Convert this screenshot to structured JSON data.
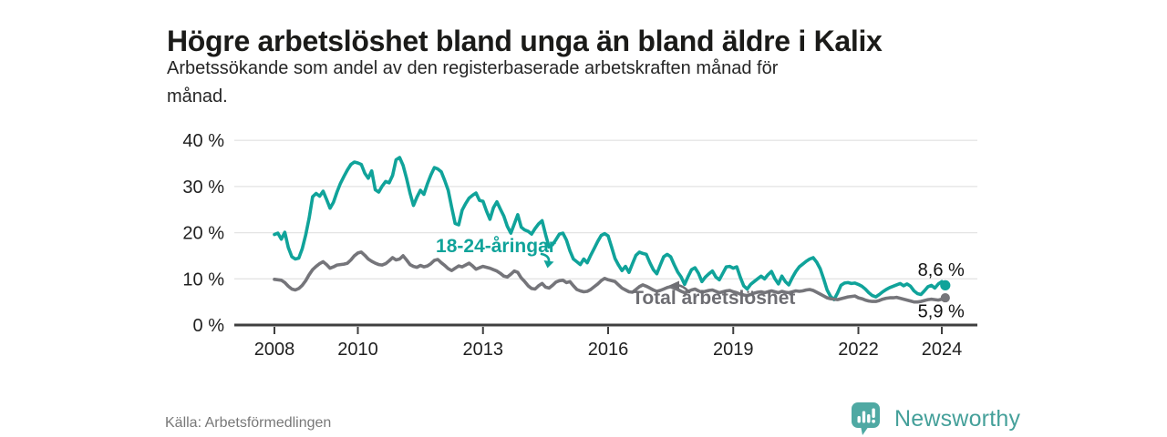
{
  "header": {
    "title": "Högre arbetslöshet bland unga än bland äldre i Kalix",
    "subtitle_line1": "Arbetssökande som andel av den registerbaserade arbetskraften månad för",
    "subtitle_line2": "månad."
  },
  "footer": {
    "source": "Källa: Arbetsförmedlingen",
    "brand": "Newsworthy"
  },
  "colors": {
    "young_line": "#10a39a",
    "total_line": "#75757a",
    "total_label": "#6e6e73",
    "grid": "#e4e4e4",
    "axis": "#3f3f3f",
    "tick_text": "#1f1f1f",
    "end_label_text": "#111111",
    "brand_teal": "#4ba5a0"
  },
  "chart_data": {
    "type": "line",
    "title": "Högre arbetslöshet bland unga än bland äldre i Kalix",
    "xlabel": "",
    "ylabel": "",
    "grid": "horizontal",
    "xlim": [
      2007.05,
      2024.8
    ],
    "ylim": [
      0,
      40
    ],
    "x_ticks": [
      2008,
      2010,
      2013,
      2016,
      2019,
      2022,
      2024
    ],
    "x_tick_labels": [
      "2008",
      "2010",
      "2013",
      "2016",
      "2019",
      "2022",
      "2024"
    ],
    "y_ticks": [
      0,
      10,
      20,
      30,
      40
    ],
    "y_tick_labels": [
      "0 %",
      "10 %",
      "20 %",
      "30 %",
      "40 %"
    ],
    "series": [
      {
        "id": "young",
        "name": "18-24-åringar",
        "color": "#10a39a",
        "end_value": 8.6,
        "end_label": "8,6 %",
        "label_anchor": {
          "x": 2011.87,
          "y": 15.8
        },
        "start_year": 2008,
        "step_months": 1,
        "values": [
          19.6,
          19.9,
          18.6,
          20.1,
          16.8,
          14.8,
          14.3,
          14.5,
          16.5,
          19.5,
          23.2,
          27.8,
          28.5,
          27.9,
          29.0,
          27.2,
          25.3,
          26.6,
          28.8,
          30.7,
          32.2,
          33.6,
          34.8,
          35.3,
          35.1,
          34.8,
          32.9,
          31.8,
          33.4,
          29.3,
          28.8,
          30.1,
          31.1,
          30.8,
          32.4,
          35.8,
          36.3,
          34.6,
          31.8,
          28.6,
          25.9,
          27.7,
          29.2,
          28.3,
          30.6,
          32.5,
          34.1,
          33.8,
          33.2,
          31.3,
          29.2,
          25.5,
          22.0,
          21.7,
          24.9,
          26.3,
          27.5,
          28.1,
          28.6,
          27.0,
          26.8,
          24.7,
          22.9,
          25.4,
          26.7,
          25.1,
          23.6,
          21.4,
          19.9,
          21.9,
          23.9,
          21.2,
          20.6,
          20.3,
          19.7,
          20.9,
          21.9,
          22.6,
          19.6,
          16.9,
          17.4,
          18.5,
          19.7,
          19.9,
          18.4,
          16.1,
          14.3,
          13.7,
          13.1,
          14.3,
          13.5,
          15.1,
          16.6,
          18.1,
          19.4,
          19.8,
          19.3,
          16.9,
          14.4,
          13.0,
          11.8,
          12.7,
          11.4,
          13.3,
          15.1,
          15.8,
          15.5,
          15.3,
          13.5,
          12.0,
          11.1,
          13.0,
          14.8,
          15.3,
          14.8,
          13.1,
          11.5,
          10.4,
          8.8,
          10.5,
          12.0,
          12.4,
          11.2,
          9.4,
          10.4,
          11.1,
          11.7,
          10.4,
          9.8,
          11.2,
          12.6,
          12.7,
          12.3,
          12.6,
          10.4,
          8.5,
          7.8,
          8.8,
          9.4,
          10.0,
          10.6,
          10.0,
          10.9,
          11.6,
          10.0,
          8.9,
          10.6,
          9.4,
          8.7,
          10.3,
          11.6,
          12.6,
          13.2,
          13.8,
          14.3,
          14.6,
          13.6,
          12.2,
          10.0,
          7.6,
          6.2,
          5.5,
          6.9,
          8.6,
          9.1,
          9.2,
          9.0,
          9.1,
          8.8,
          8.4,
          7.8,
          7.0,
          6.4,
          6.1,
          6.6,
          7.2,
          7.7,
          8.1,
          8.4,
          8.7,
          9.0,
          8.5,
          8.9,
          8.4,
          7.4,
          6.8,
          6.6,
          7.4,
          8.3,
          8.6,
          8.0,
          8.9,
          9.4,
          8.6
        ]
      },
      {
        "id": "total",
        "name": "Total arbetslöshet",
        "color": "#75757a",
        "end_value": 5.9,
        "end_label": "5,9 %",
        "label_anchor": {
          "x": 2016.57,
          "y": 4.5
        },
        "start_year": 2008,
        "step_months": 1,
        "values": [
          9.9,
          9.8,
          9.7,
          9.2,
          8.4,
          7.8,
          7.6,
          7.9,
          8.6,
          9.6,
          10.9,
          12.0,
          12.7,
          13.3,
          13.7,
          13.1,
          12.3,
          12.6,
          13.0,
          13.1,
          13.2,
          13.4,
          14.1,
          15.0,
          15.6,
          15.8,
          15.1,
          14.3,
          13.8,
          13.4,
          13.1,
          13.0,
          13.3,
          13.9,
          14.6,
          14.1,
          14.3,
          15.0,
          14.1,
          13.1,
          12.7,
          12.5,
          12.9,
          12.6,
          12.8,
          13.3,
          14.0,
          14.2,
          13.5,
          12.9,
          12.2,
          11.8,
          12.3,
          12.8,
          12.6,
          13.0,
          13.4,
          12.8,
          12.1,
          12.4,
          12.7,
          12.5,
          12.3,
          12.0,
          11.7,
          11.2,
          10.6,
          10.4,
          11.0,
          11.7,
          11.4,
          10.2,
          9.4,
          8.5,
          7.9,
          7.8,
          8.5,
          9.0,
          8.2,
          8.0,
          8.6,
          9.3,
          9.6,
          9.7,
          9.2,
          9.4,
          8.5,
          7.7,
          7.4,
          7.2,
          7.3,
          7.7,
          8.3,
          8.9,
          9.6,
          10.1,
          9.8,
          9.6,
          9.4,
          8.7,
          8.0,
          7.6,
          7.2,
          7.1,
          7.7,
          8.3,
          8.7,
          8.4,
          8.0,
          7.6,
          7.3,
          7.5,
          7.8,
          8.1,
          8.3,
          8.0,
          7.7,
          7.3,
          7.0,
          7.3,
          7.6,
          7.8,
          7.4,
          7.1,
          7.3,
          7.5,
          7.6,
          7.3,
          7.0,
          7.2,
          7.4,
          7.5,
          7.2,
          7.0,
          6.7,
          6.5,
          6.4,
          6.6,
          6.9,
          7.1,
          7.2,
          7.0,
          7.2,
          7.4,
          7.2,
          7.0,
          7.3,
          7.1,
          7.0,
          7.2,
          7.4,
          7.3,
          7.4,
          7.6,
          7.7,
          7.5,
          7.1,
          6.7,
          6.3,
          5.9,
          5.7,
          5.6,
          5.5,
          5.7,
          5.9,
          6.1,
          6.2,
          6.3,
          5.9,
          5.7,
          5.4,
          5.2,
          5.1,
          5.1,
          5.3,
          5.6,
          5.8,
          5.9,
          5.9,
          6.0,
          5.8,
          5.6,
          5.4,
          5.2,
          5.0,
          5.0,
          5.1,
          5.3,
          5.5,
          5.6,
          5.5,
          5.4,
          5.6,
          5.9
        ]
      }
    ]
  }
}
